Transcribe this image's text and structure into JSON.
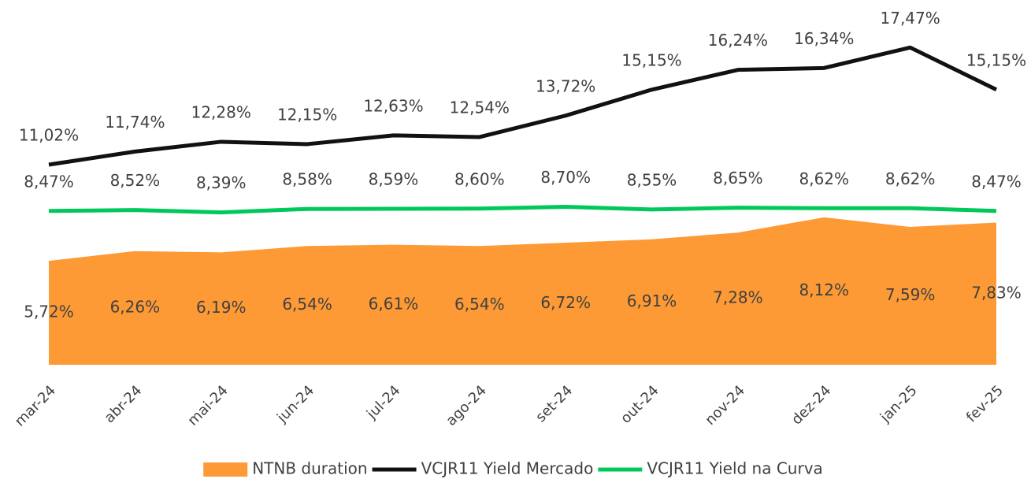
{
  "chart_data": {
    "type": "line",
    "categories": [
      "mar-24",
      "abr-24",
      "mai-24",
      "jun-24",
      "jul-24",
      "ago-24",
      "set-24",
      "out-24",
      "nov-24",
      "dez-24",
      "jan-25",
      "fev-25"
    ],
    "ylim": [
      0,
      20
    ],
    "legend": "bottom",
    "series": [
      {
        "name": "NTNB duration",
        "type": "area",
        "color": "#fd9a36",
        "values": [
          5.72,
          6.26,
          6.19,
          6.54,
          6.61,
          6.54,
          6.72,
          6.91,
          7.28,
          8.12,
          7.59,
          7.83
        ],
        "value_labels": [
          "5,72%",
          "6,26%",
          "6,19%",
          "6,54%",
          "6,61%",
          "6,54%",
          "6,72%",
          "6,91%",
          "7,28%",
          "8,12%",
          "7,59%",
          "7,83%"
        ]
      },
      {
        "name": "VCJR11 Yield Mercado",
        "type": "line",
        "color": "#111111",
        "values": [
          11.02,
          11.74,
          12.28,
          12.15,
          12.63,
          12.54,
          13.72,
          15.15,
          16.24,
          16.34,
          17.47,
          15.15
        ],
        "value_labels": [
          "11,02%",
          "11,74%",
          "12,28%",
          "12,15%",
          "12,63%",
          "12,54%",
          "13,72%",
          "15,15%",
          "16,24%",
          "16,34%",
          "17,47%",
          "15,15%"
        ]
      },
      {
        "name": "VCJR11 Yield na Curva",
        "type": "line",
        "color": "#00c85a",
        "values": [
          8.47,
          8.52,
          8.39,
          8.58,
          8.59,
          8.6,
          8.7,
          8.55,
          8.65,
          8.62,
          8.62,
          8.47
        ],
        "value_labels": [
          "8,47%",
          "8,52%",
          "8,39%",
          "8,58%",
          "8,59%",
          "8,60%",
          "8,70%",
          "8,55%",
          "8,65%",
          "8,62%",
          "8,62%",
          "8,47%"
        ]
      }
    ]
  }
}
